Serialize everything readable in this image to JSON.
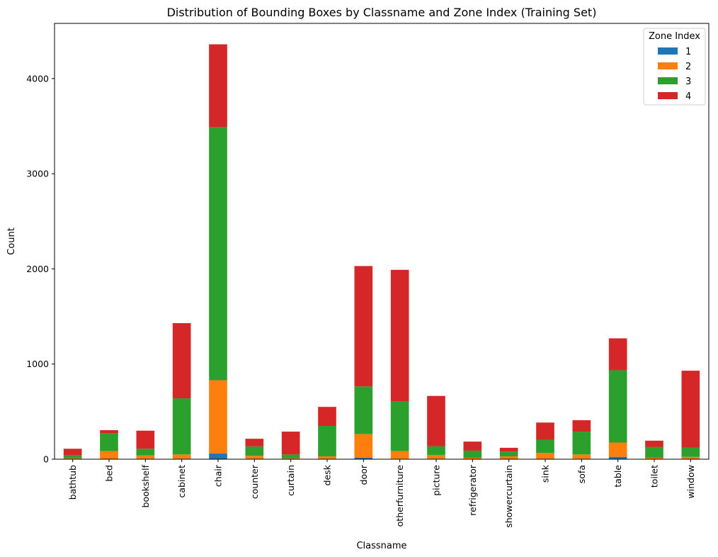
{
  "chart_data": {
    "type": "bar",
    "stacked": true,
    "title": "Distribution of Bounding Boxes by Classname and Zone Index (Training Set)",
    "xlabel": "Classname",
    "ylabel": "Count",
    "ylim": [
      0,
      4580
    ],
    "yticks": [
      0,
      1000,
      2000,
      3000,
      4000
    ],
    "grid": false,
    "legend_title": "Zone Index",
    "legend_placement": "top-right",
    "categories": [
      "bathtub",
      "bed",
      "bookshelf",
      "cabinet",
      "chair",
      "counter",
      "curtain",
      "desk",
      "door",
      "otherfurniture",
      "picture",
      "refrigerator",
      "showercurtain",
      "sink",
      "sofa",
      "table",
      "toilet",
      "window"
    ],
    "series": [
      {
        "name": "1",
        "color": "#1f77b4",
        "values": [
          0,
          0,
          5,
          5,
          60,
          5,
          0,
          5,
          15,
          5,
          5,
          0,
          0,
          5,
          5,
          25,
          0,
          5
        ]
      },
      {
        "name": "2",
        "color": "#ff7f0e",
        "values": [
          10,
          85,
          35,
          45,
          770,
          30,
          10,
          25,
          250,
          80,
          40,
          15,
          30,
          60,
          45,
          150,
          15,
          20
        ]
      },
      {
        "name": "3",
        "color": "#2ca02c",
        "values": [
          30,
          190,
          70,
          590,
          2660,
          100,
          40,
          320,
          500,
          520,
          90,
          75,
          50,
          140,
          240,
          760,
          115,
          95
        ]
      },
      {
        "name": "4",
        "color": "#d62728",
        "values": [
          70,
          30,
          190,
          790,
          870,
          80,
          240,
          200,
          1265,
          1385,
          530,
          95,
          40,
          180,
          120,
          335,
          65,
          810
        ]
      }
    ]
  }
}
